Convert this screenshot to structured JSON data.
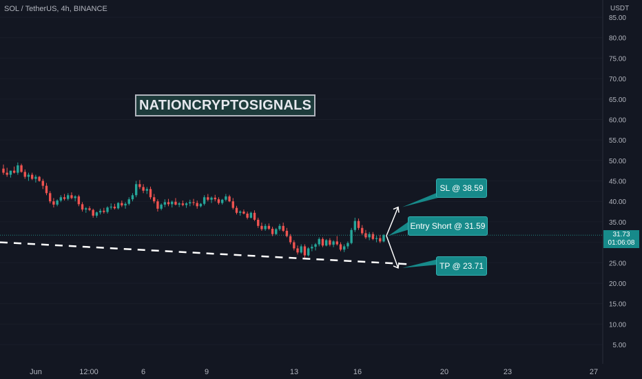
{
  "header": {
    "symbol_title": "SOL / TetherUS, 4h, BINANCE"
  },
  "watermark": {
    "text": "NATIONCRYPTOSIGNALS"
  },
  "annotations": {
    "sl": "SL @ 38.59",
    "entry": "Entry Short @ 31.59",
    "tp": "TP @ 23.71"
  },
  "price_axis": {
    "currency": "USDT"
  },
  "last_price": {
    "value": "31.73",
    "countdown": "01:06:08"
  },
  "colors": {
    "background": "#131722",
    "up": "#26a69a",
    "down": "#ef5350",
    "label_bg": "#178a8a",
    "text": "#b2b5be"
  },
  "chart_data": {
    "type": "candlestick",
    "y_axis": {
      "label": "USDT",
      "range": [
        3,
        86
      ],
      "ticks": [
        "85.00",
        "80.00",
        "75.00",
        "70.00",
        "65.00",
        "60.00",
        "55.00",
        "50.00",
        "45.00",
        "40.00",
        "35.00",
        "30.00",
        "25.00",
        "20.00",
        "15.00",
        "10.00",
        "5.00"
      ]
    },
    "x_axis": {
      "ticks": [
        "Jun",
        "12:00",
        "6",
        "9",
        "13",
        "16",
        "20",
        "23",
        "27"
      ]
    },
    "trendline": {
      "style": "dashed",
      "from_price": 30.0,
      "to_price": 24.6
    },
    "levels": {
      "sl": 38.59,
      "entry": 31.59,
      "tp": 23.71,
      "last": 31.73
    },
    "candles": [
      [
        48.0,
        49.0,
        46.5,
        47.0
      ],
      [
        47.0,
        48.2,
        46.0,
        46.5
      ],
      [
        46.5,
        47.5,
        45.8,
        47.5
      ],
      [
        47.5,
        48.5,
        46.8,
        47.0
      ],
      [
        47.0,
        49.5,
        46.5,
        48.8
      ],
      [
        48.8,
        49.2,
        47.0,
        47.2
      ],
      [
        47.2,
        47.8,
        45.5,
        46.0
      ],
      [
        46.0,
        47.0,
        45.0,
        46.5
      ],
      [
        46.5,
        47.0,
        45.2,
        45.5
      ],
      [
        45.5,
        46.5,
        44.6,
        46.0
      ],
      [
        46.0,
        46.2,
        44.8,
        45.0
      ],
      [
        45.0,
        45.5,
        43.0,
        43.8
      ],
      [
        43.8,
        44.5,
        41.5,
        42.0
      ],
      [
        42.0,
        42.5,
        39.5,
        40.0
      ],
      [
        40.0,
        40.8,
        38.5,
        39.2
      ],
      [
        39.2,
        40.5,
        38.8,
        40.2
      ],
      [
        40.2,
        41.5,
        39.8,
        41.0
      ],
      [
        41.0,
        41.8,
        40.2,
        40.6
      ],
      [
        40.6,
        42.0,
        40.2,
        41.5
      ],
      [
        41.5,
        42.2,
        40.5,
        40.8
      ],
      [
        40.8,
        41.5,
        40.0,
        41.2
      ],
      [
        41.2,
        41.6,
        38.8,
        39.3
      ],
      [
        39.3,
        39.8,
        37.5,
        38.0
      ],
      [
        38.0,
        38.6,
        37.2,
        38.3
      ],
      [
        38.3,
        38.8,
        37.6,
        37.9
      ],
      [
        37.9,
        38.2,
        36.0,
        36.5
      ],
      [
        36.5,
        37.5,
        36.0,
        37.3
      ],
      [
        37.3,
        38.2,
        36.8,
        37.7
      ],
      [
        37.7,
        38.4,
        37.0,
        37.4
      ],
      [
        37.4,
        38.8,
        37.0,
        38.5
      ],
      [
        38.5,
        39.5,
        38.0,
        38.7
      ],
      [
        38.7,
        39.4,
        38.0,
        38.3
      ],
      [
        38.3,
        39.8,
        38.0,
        39.6
      ],
      [
        39.6,
        40.2,
        38.6,
        39.0
      ],
      [
        39.0,
        39.8,
        38.2,
        39.4
      ],
      [
        39.4,
        41.0,
        39.0,
        40.5
      ],
      [
        40.5,
        42.0,
        40.0,
        41.5
      ],
      [
        41.5,
        45.0,
        41.0,
        44.2
      ],
      [
        44.2,
        45.2,
        43.0,
        43.5
      ],
      [
        43.5,
        44.2,
        42.0,
        42.6
      ],
      [
        42.6,
        43.5,
        41.8,
        43.0
      ],
      [
        43.0,
        43.6,
        40.5,
        41.0
      ],
      [
        41.0,
        41.8,
        39.5,
        40.0
      ],
      [
        40.0,
        40.5,
        37.5,
        38.2
      ],
      [
        38.2,
        39.5,
        37.8,
        39.2
      ],
      [
        39.2,
        40.5,
        38.6,
        39.8
      ],
      [
        39.8,
        40.6,
        38.8,
        39.3
      ],
      [
        39.3,
        40.2,
        38.5,
        39.9
      ],
      [
        39.9,
        40.8,
        39.0,
        39.2
      ],
      [
        39.2,
        39.8,
        38.6,
        39.5
      ],
      [
        39.5,
        40.2,
        38.8,
        39.1
      ],
      [
        39.1,
        39.8,
        38.4,
        39.5
      ],
      [
        39.5,
        40.4,
        38.8,
        39.8
      ],
      [
        39.8,
        40.6,
        39.0,
        39.6
      ],
      [
        39.6,
        40.2,
        38.2,
        38.8
      ],
      [
        38.8,
        39.6,
        38.5,
        39.4
      ],
      [
        39.4,
        41.5,
        39.0,
        41.0
      ],
      [
        41.0,
        41.8,
        40.0,
        40.4
      ],
      [
        40.4,
        41.2,
        39.6,
        40.9
      ],
      [
        40.9,
        41.6,
        40.0,
        40.5
      ],
      [
        40.5,
        41.0,
        39.2,
        39.6
      ],
      [
        39.6,
        40.6,
        39.2,
        40.4
      ],
      [
        40.4,
        41.8,
        40.0,
        41.2
      ],
      [
        41.2,
        41.6,
        39.8,
        40.0
      ],
      [
        40.0,
        40.8,
        38.0,
        38.4
      ],
      [
        38.4,
        38.9,
        36.8,
        37.2
      ],
      [
        37.2,
        37.8,
        36.5,
        37.5
      ],
      [
        37.5,
        38.0,
        36.8,
        37.0
      ],
      [
        37.0,
        37.5,
        35.6,
        36.0
      ],
      [
        36.0,
        37.5,
        35.8,
        37.2
      ],
      [
        37.2,
        37.8,
        35.2,
        35.5
      ],
      [
        35.5,
        36.0,
        33.5,
        34.0
      ],
      [
        34.0,
        34.8,
        32.8,
        33.2
      ],
      [
        33.2,
        34.5,
        32.8,
        34.0
      ],
      [
        34.0,
        34.6,
        33.0,
        33.3
      ],
      [
        33.3,
        33.8,
        31.5,
        32.0
      ],
      [
        32.0,
        33.5,
        31.8,
        33.2
      ],
      [
        33.2,
        34.5,
        32.8,
        34.0
      ],
      [
        34.0,
        34.8,
        32.5,
        32.8
      ],
      [
        32.8,
        33.5,
        31.2,
        31.5
      ],
      [
        31.5,
        32.0,
        29.5,
        30.0
      ],
      [
        30.0,
        30.5,
        28.0,
        28.5
      ],
      [
        28.5,
        29.2,
        27.0,
        27.5
      ],
      [
        27.5,
        29.5,
        27.2,
        29.0
      ],
      [
        29.0,
        29.5,
        26.2,
        26.8
      ],
      [
        26.8,
        28.8,
        26.5,
        28.5
      ],
      [
        28.5,
        29.5,
        27.8,
        28.9
      ],
      [
        28.9,
        29.8,
        28.0,
        29.5
      ],
      [
        29.5,
        31.2,
        29.0,
        30.8
      ],
      [
        30.8,
        31.2,
        28.8,
        29.2
      ],
      [
        29.2,
        30.8,
        29.0,
        30.5
      ],
      [
        30.5,
        31.0,
        29.0,
        29.4
      ],
      [
        29.4,
        30.5,
        28.8,
        30.2
      ],
      [
        30.2,
        31.5,
        29.2,
        29.5
      ],
      [
        29.5,
        30.0,
        27.8,
        28.2
      ],
      [
        28.2,
        29.5,
        27.6,
        29.0
      ],
      [
        29.0,
        30.2,
        28.4,
        29.8
      ],
      [
        29.8,
        33.5,
        29.5,
        33.0
      ],
      [
        33.0,
        36.0,
        32.5,
        35.2
      ],
      [
        35.2,
        35.8,
        33.0,
        33.5
      ],
      [
        33.5,
        34.2,
        31.8,
        32.2
      ],
      [
        32.2,
        33.0,
        30.8,
        31.2
      ],
      [
        31.2,
        32.5,
        30.5,
        32.0
      ],
      [
        32.0,
        32.5,
        30.5,
        30.8
      ],
      [
        30.8,
        31.6,
        30.0,
        31.0
      ],
      [
        31.0,
        31.8,
        29.8,
        30.2
      ],
      [
        30.2,
        32.0,
        30.0,
        31.73
      ]
    ]
  }
}
